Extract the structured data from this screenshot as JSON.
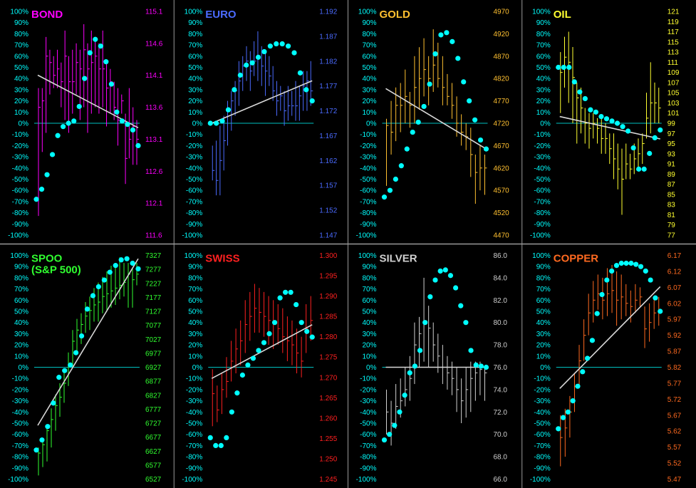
{
  "colors": {
    "background": "#000000",
    "divider": "#9a9a9a",
    "zero_line": "#00bfbf",
    "dots": "#00ffff",
    "left_axis": "#00ffff",
    "trend": "#d8d8d8"
  },
  "left_axis_labels": [
    "100%",
    "90%",
    "80%",
    "70%",
    "60%",
    "50%",
    "40%",
    "30%",
    "20%",
    "10%",
    "0%",
    "-10%",
    "-20%",
    "-30%",
    "-40%",
    "-50%",
    "-60%",
    "-70%",
    "-80%",
    "-90%",
    "-100%"
  ],
  "chart_data": [
    {
      "type": "line",
      "title": "BOND",
      "color": "#ff00ff",
      "right_axis_ticks": [
        "115.1",
        "114.6",
        "114.1",
        "113.6",
        "113.1",
        "112.6",
        "112.1",
        "111.6"
      ],
      "right_range": [
        111.6,
        115.1
      ],
      "bars": [
        [
          111.9,
          113.9,
          113.6
        ],
        [
          112.9,
          113.9,
          113.7
        ],
        [
          113.2,
          114.7,
          114.4
        ],
        [
          113.8,
          114.5,
          114.3
        ],
        [
          113.9,
          114.4,
          114.1
        ],
        [
          113.9,
          114.5,
          114.2
        ],
        [
          113.6,
          114.3,
          114.0
        ],
        [
          113.4,
          114.8,
          114.4
        ],
        [
          113.2,
          114.4,
          114.0
        ],
        [
          113.5,
          114.5,
          114.0
        ],
        [
          113.8,
          114.6,
          114.3
        ],
        [
          113.4,
          114.5,
          114.2
        ],
        [
          113.6,
          114.9,
          114.5
        ],
        [
          113.2,
          114.6,
          114.2
        ],
        [
          113.5,
          114.8,
          114.3
        ],
        [
          113.6,
          114.7,
          114.4
        ],
        [
          113.5,
          114.6,
          114.2
        ],
        [
          113.6,
          114.8,
          114.2
        ],
        [
          113.3,
          114.3,
          113.9
        ],
        [
          113.5,
          114.2,
          114.0
        ],
        [
          113.4,
          114.0,
          113.6
        ],
        [
          113.0,
          113.9,
          113.4
        ],
        [
          113.5,
          113.8,
          113.7
        ],
        [
          112.4,
          113.5,
          112.8
        ],
        [
          112.8,
          113.9,
          113.1
        ],
        [
          112.7,
          113.6,
          113.3
        ],
        [
          112.7,
          113.4,
          113.1
        ]
      ],
      "oscillator": [
        -68,
        -59,
        -46,
        -28,
        -11,
        -3,
        0,
        2,
        15,
        40,
        63,
        75,
        69,
        55,
        35,
        10,
        2,
        -1,
        -6,
        -20
      ],
      "trend": [
        43,
        -4
      ]
    },
    {
      "type": "line",
      "title": "EURO",
      "color": "#4b6bff",
      "right_axis_ticks": [
        "1.192",
        "1.187",
        "1.182",
        "1.177",
        "1.172",
        "1.167",
        "1.162",
        "1.157",
        "1.152",
        "1.147"
      ],
      "right_range": [
        1.147,
        1.192
      ],
      "bars": [
        [
          1.158,
          1.165,
          1.16
        ],
        [
          1.155,
          1.166,
          1.158
        ],
        [
          1.155,
          1.169,
          1.162
        ],
        [
          1.16,
          1.171,
          1.166
        ],
        [
          1.165,
          1.174,
          1.172
        ],
        [
          1.168,
          1.176,
          1.174
        ],
        [
          1.171,
          1.178,
          1.176
        ],
        [
          1.173,
          1.182,
          1.178
        ],
        [
          1.176,
          1.183,
          1.181
        ],
        [
          1.178,
          1.185,
          1.182
        ],
        [
          1.176,
          1.184,
          1.18
        ],
        [
          1.179,
          1.186,
          1.182
        ],
        [
          1.178,
          1.188,
          1.183
        ],
        [
          1.177,
          1.185,
          1.181
        ],
        [
          1.175,
          1.184,
          1.18
        ],
        [
          1.177,
          1.183,
          1.179
        ],
        [
          1.174,
          1.181,
          1.176
        ],
        [
          1.171,
          1.178,
          1.174
        ],
        [
          1.172,
          1.177,
          1.175
        ],
        [
          1.169,
          1.176,
          1.172
        ],
        [
          1.17,
          1.177,
          1.173
        ],
        [
          1.171,
          1.176,
          1.173
        ],
        [
          1.17,
          1.178,
          1.173
        ],
        [
          1.17,
          1.177,
          1.175
        ],
        [
          1.172,
          1.18,
          1.177
        ],
        [
          1.172,
          1.18,
          1.178
        ],
        [
          1.173,
          1.182,
          1.176
        ]
      ],
      "oscillator": [
        0,
        0,
        2,
        12,
        30,
        43,
        52,
        54,
        59,
        64,
        69,
        71,
        71,
        69,
        63,
        45,
        30,
        20
      ],
      "trend": [
        0,
        38
      ]
    },
    {
      "type": "line",
      "title": "GOLD",
      "color": "#ffc030",
      "right_axis_ticks": [
        "4970",
        "4920",
        "4870",
        "4820",
        "4770",
        "4720",
        "4670",
        "4620",
        "4570",
        "4520",
        "4470"
      ],
      "right_range": [
        4470,
        4970
      ],
      "bars": [
        [
          4580,
          4730,
          4715
        ],
        [
          4650,
          4770,
          4700
        ],
        [
          4680,
          4800,
          4760
        ],
        [
          4700,
          4810,
          4760
        ],
        [
          4720,
          4840,
          4780
        ],
        [
          4710,
          4790,
          4760
        ],
        [
          4720,
          4870,
          4800
        ],
        [
          4750,
          4890,
          4820
        ],
        [
          4780,
          4910,
          4840
        ],
        [
          4760,
          4870,
          4820
        ],
        [
          4790,
          4930,
          4850
        ],
        [
          4800,
          4900,
          4820
        ],
        [
          4760,
          4870,
          4800
        ],
        [
          4760,
          4830,
          4780
        ],
        [
          4730,
          4810,
          4760
        ],
        [
          4690,
          4780,
          4720
        ],
        [
          4670,
          4740,
          4700
        ],
        [
          4660,
          4720,
          4690
        ],
        [
          4600,
          4710,
          4650
        ],
        [
          4540,
          4650,
          4610
        ],
        [
          4570,
          4670,
          4620
        ],
        [
          4560,
          4650,
          4620
        ]
      ],
      "oscillator": [
        -66,
        -60,
        -50,
        -38,
        -23,
        -8,
        1,
        15,
        35,
        62,
        79,
        81,
        73,
        58,
        37,
        20,
        3,
        -15,
        -23
      ],
      "trend": [
        31,
        -23
      ]
    },
    {
      "type": "line",
      "title": "OIL",
      "color": "#ffff30",
      "right_axis_ticks": [
        "121",
        "119",
        "117",
        "115",
        "113",
        "111",
        "109",
        "107",
        "105",
        "103",
        "101",
        "99",
        "97",
        "95",
        "93",
        "91",
        "89",
        "87",
        "85",
        "83",
        "81",
        "79",
        "77"
      ],
      "right_range": [
        77,
        121
      ],
      "bars": [
        [
          101,
          113,
          109
        ],
        [
          106,
          116,
          112
        ],
        [
          103,
          117,
          111
        ],
        [
          99,
          114,
          108
        ],
        [
          95,
          107,
          104
        ],
        [
          97,
          106,
          102
        ],
        [
          95,
          102,
          99
        ],
        [
          94,
          101,
          98
        ],
        [
          96,
          101,
          99
        ],
        [
          95,
          100,
          98
        ],
        [
          93,
          100,
          96
        ],
        [
          93,
          99,
          96
        ],
        [
          91,
          97,
          94
        ],
        [
          88,
          97,
          92
        ],
        [
          86,
          95,
          90
        ],
        [
          81,
          94,
          88
        ],
        [
          88,
          95,
          91
        ],
        [
          88,
          93,
          90
        ],
        [
          89,
          95,
          92
        ],
        [
          90,
          96,
          93
        ],
        [
          91,
          97,
          95
        ],
        [
          96,
          105,
          100
        ],
        [
          97,
          111,
          103
        ],
        [
          99,
          107,
          103
        ],
        [
          99,
          106,
          102
        ]
      ],
      "oscillator": [
        50,
        50,
        50,
        37,
        28,
        22,
        12,
        10,
        6,
        4,
        2,
        0,
        -3,
        -7,
        -22,
        -41,
        -41,
        -27,
        -13,
        -6
      ],
      "trend": [
        6,
        -14
      ]
    },
    {
      "type": "line",
      "title": "SPOO\n(S&P 500)",
      "color": "#30ff30",
      "right_axis_ticks": [
        "7327",
        "7277",
        "7227",
        "7177",
        "7127",
        "7077",
        "7027",
        "6977",
        "6927",
        "6877",
        "6827",
        "6777",
        "6727",
        "6677",
        "6627",
        "6577",
        "6527"
      ],
      "right_range": [
        6527,
        7327
      ],
      "bars": [
        [
          6540,
          6640,
          6620
        ],
        [
          6570,
          6670,
          6650
        ],
        [
          6590,
          6720,
          6700
        ],
        [
          6640,
          6780,
          6740
        ],
        [
          6700,
          6830,
          6790
        ],
        [
          6750,
          6870,
          6820
        ],
        [
          6800,
          6920,
          6870
        ],
        [
          6860,
          6980,
          6940
        ],
        [
          6930,
          7060,
          7020
        ],
        [
          6980,
          7100,
          7060
        ],
        [
          7010,
          7120,
          7080
        ],
        [
          7050,
          7160,
          7110
        ],
        [
          7060,
          7180,
          7130
        ],
        [
          7090,
          7210,
          7150
        ],
        [
          7090,
          7230,
          7160
        ],
        [
          7120,
          7250,
          7180
        ],
        [
          7130,
          7270,
          7190
        ],
        [
          7140,
          7290,
          7200
        ],
        [
          7150,
          7300,
          7210
        ],
        [
          7170,
          7320,
          7220
        ],
        [
          7180,
          7300,
          7230
        ],
        [
          7140,
          7300,
          7260
        ],
        [
          7140,
          7280,
          7240
        ],
        [
          7220,
          7300,
          7260
        ]
      ],
      "oscillator": [
        -74,
        -65,
        -53,
        -32,
        -9,
        -3,
        2,
        13,
        28,
        52,
        64,
        72,
        78,
        85,
        91,
        96,
        97,
        93,
        88
      ],
      "trend": [
        -52,
        97
      ]
    },
    {
      "type": "line",
      "title": "SWISS",
      "color": "#ff2020",
      "right_axis_ticks": [
        "1.300",
        "1.295",
        "1.290",
        "1.285",
        "1.280",
        "1.275",
        "1.270",
        "1.265",
        "1.260",
        "1.255",
        "1.250",
        "1.245"
      ],
      "right_range": [
        1.245,
        1.3
      ],
      "bars": [
        [
          1.258,
          1.272,
          1.266
        ],
        [
          1.259,
          1.268,
          1.262
        ],
        [
          1.261,
          1.271,
          1.267
        ],
        [
          1.265,
          1.275,
          1.269
        ],
        [
          1.269,
          1.279,
          1.274
        ],
        [
          1.271,
          1.282,
          1.277
        ],
        [
          1.273,
          1.284,
          1.279
        ],
        [
          1.276,
          1.289,
          1.283
        ],
        [
          1.279,
          1.291,
          1.285
        ],
        [
          1.281,
          1.293,
          1.287
        ],
        [
          1.281,
          1.292,
          1.286
        ],
        [
          1.28,
          1.291,
          1.285
        ],
        [
          1.278,
          1.29,
          1.284
        ],
        [
          1.277,
          1.289,
          1.283
        ],
        [
          1.278,
          1.288,
          1.282
        ],
        [
          1.276,
          1.287,
          1.28
        ],
        [
          1.274,
          1.285,
          1.279
        ],
        [
          1.273,
          1.284,
          1.278
        ],
        [
          1.271,
          1.282,
          1.276
        ],
        [
          1.27,
          1.28,
          1.274
        ],
        [
          1.276,
          1.288,
          1.282
        ],
        [
          1.279,
          1.29,
          1.284
        ]
      ],
      "oscillator": [
        -63,
        -70,
        -70,
        -63,
        -40,
        -23,
        -7,
        2,
        8,
        15,
        22,
        30,
        40,
        62,
        67,
        67,
        56,
        40,
        32,
        27
      ],
      "trend": [
        -10,
        38
      ]
    },
    {
      "type": "line",
      "title": "SILVER",
      "color": "#d0d0d0",
      "right_axis_ticks": [
        "86.0",
        "84.0",
        "82.0",
        "80.0",
        "78.0",
        "76.0",
        "74.0",
        "72.0",
        "70.0",
        "68.0",
        "66.0"
      ],
      "right_range": [
        66.0,
        86.0
      ],
      "bars": [
        [
          70.0,
          74.0,
          72.0
        ],
        [
          69.0,
          73.0,
          71.0
        ],
        [
          70.5,
          74.5,
          72.5
        ],
        [
          71.5,
          75.0,
          73.0
        ],
        [
          72.5,
          76.0,
          74.0
        ],
        [
          73.0,
          77.0,
          75.0
        ],
        [
          74.5,
          80.0,
          78.0
        ],
        [
          76.0,
          80.5,
          79.0
        ],
        [
          76.5,
          84.0,
          80.0
        ],
        [
          76.0,
          81.5,
          79.5
        ],
        [
          76.5,
          80.0,
          78.0
        ],
        [
          75.5,
          79.0,
          77.0
        ],
        [
          74.5,
          78.0,
          76.0
        ],
        [
          74.0,
          77.0,
          75.5
        ],
        [
          73.5,
          76.5,
          75.0
        ],
        [
          72.0,
          76.0,
          74.0
        ],
        [
          71.0,
          75.0,
          73.0
        ],
        [
          71.5,
          76.0,
          74.0
        ],
        [
          72.0,
          76.5,
          75.0
        ],
        [
          73.0,
          76.5,
          75.5
        ],
        [
          73.5,
          76.5,
          75.8
        ],
        [
          73.0,
          76.0,
          75.5
        ]
      ],
      "oscillator": [
        -65,
        -60,
        -52,
        -40,
        -25,
        -5,
        1,
        15,
        40,
        63,
        78,
        86,
        87,
        82,
        71,
        55,
        40,
        15,
        2,
        1,
        0
      ],
      "trend": [
        0,
        0
      ]
    },
    {
      "type": "line",
      "title": "COPPER",
      "color": "#ff6a20",
      "right_axis_ticks": [
        "6.17",
        "6.12",
        "6.07",
        "6.02",
        "5.97",
        "5.92",
        "5.87",
        "5.82",
        "5.77",
        "5.72",
        "5.67",
        "5.62",
        "5.57",
        "5.52",
        "5.47"
      ],
      "right_range": [
        5.47,
        6.17
      ],
      "bars": [
        [
          5.51,
          5.67,
          5.6
        ],
        [
          5.54,
          5.69,
          5.63
        ],
        [
          5.6,
          5.73,
          5.68
        ],
        [
          5.68,
          5.8,
          5.76
        ],
        [
          5.76,
          5.89,
          5.84
        ],
        [
          5.84,
          5.97,
          5.92
        ],
        [
          5.92,
          6.05,
          5.99
        ],
        [
          5.96,
          6.09,
          6.03
        ],
        [
          6.0,
          6.11,
          6.05
        ],
        [
          5.97,
          6.1,
          6.03
        ],
        [
          5.98,
          6.13,
          6.05
        ],
        [
          5.99,
          6.14,
          6.06
        ],
        [
          5.95,
          6.12,
          6.03
        ],
        [
          5.97,
          6.11,
          6.04
        ],
        [
          5.98,
          6.08,
          6.02
        ],
        [
          5.96,
          6.06,
          6.01
        ],
        [
          5.99,
          6.08,
          6.03
        ],
        [
          6.01,
          6.07,
          6.04
        ],
        [
          5.88,
          6.01,
          5.94
        ],
        [
          5.9,
          6.02,
          5.96
        ],
        [
          5.94,
          6.03,
          5.99
        ],
        [
          5.95,
          6.04,
          5.99
        ]
      ],
      "oscillator": [
        -55,
        -45,
        -40,
        -30,
        -17,
        -4,
        8,
        24,
        48,
        65,
        78,
        86,
        91,
        93,
        93,
        93,
        92,
        90,
        86,
        78,
        62,
        50
      ],
      "trend": [
        -19,
        72
      ]
    }
  ]
}
